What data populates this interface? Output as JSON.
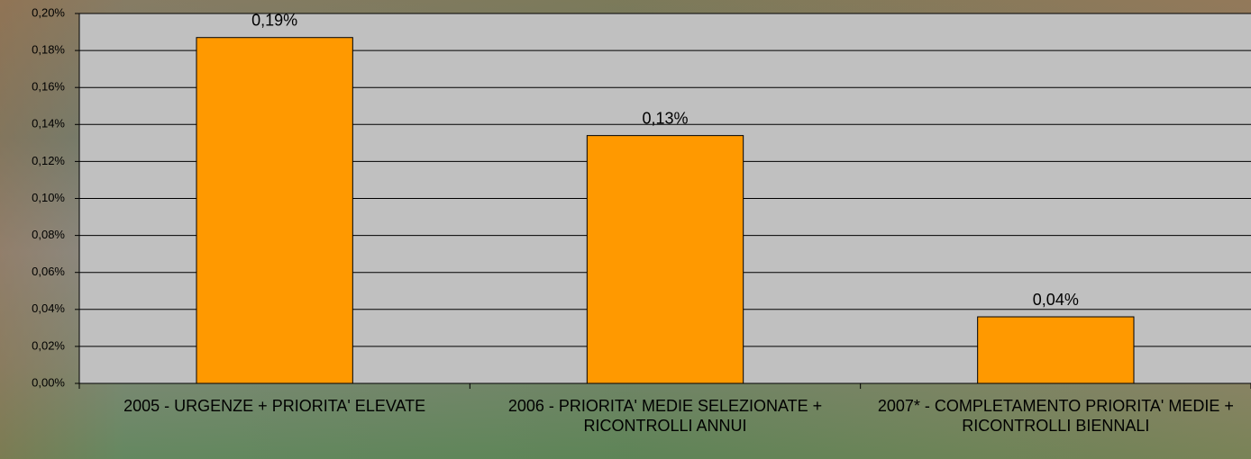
{
  "chart_data": {
    "type": "bar",
    "categories": [
      "2005 - URGENZE + PRIORITA' ELEVATE",
      "2006 - PRIORITA' MEDIE SELEZIONATE + RICONTROLLI ANNUI",
      "2007* - COMPLETAMENTO PRIORITA' MEDIE + RICONTROLLI BIENNALI"
    ],
    "values": [
      0.187,
      0.134,
      0.036
    ],
    "value_labels": [
      "0,19%",
      "0,13%",
      "0,04%"
    ],
    "color": "#ff9900",
    "ylim": [
      0,
      0.2
    ],
    "yticks": [
      {
        "value": 0,
        "label": "0,00%"
      },
      {
        "value": 0.02,
        "label": "0,02%"
      },
      {
        "value": 0.04,
        "label": "0,04%"
      },
      {
        "value": 0.06,
        "label": "0,06%"
      },
      {
        "value": 0.08,
        "label": "0,08%"
      },
      {
        "value": 0.1,
        "label": "0,10%"
      },
      {
        "value": 0.12,
        "label": "0,12%"
      },
      {
        "value": 0.14,
        "label": "0,14%"
      },
      {
        "value": 0.16,
        "label": "0,16%"
      },
      {
        "value": 0.18,
        "label": "0,18%"
      },
      {
        "value": 0.2,
        "label": "0,20%"
      }
    ],
    "grid": true
  }
}
